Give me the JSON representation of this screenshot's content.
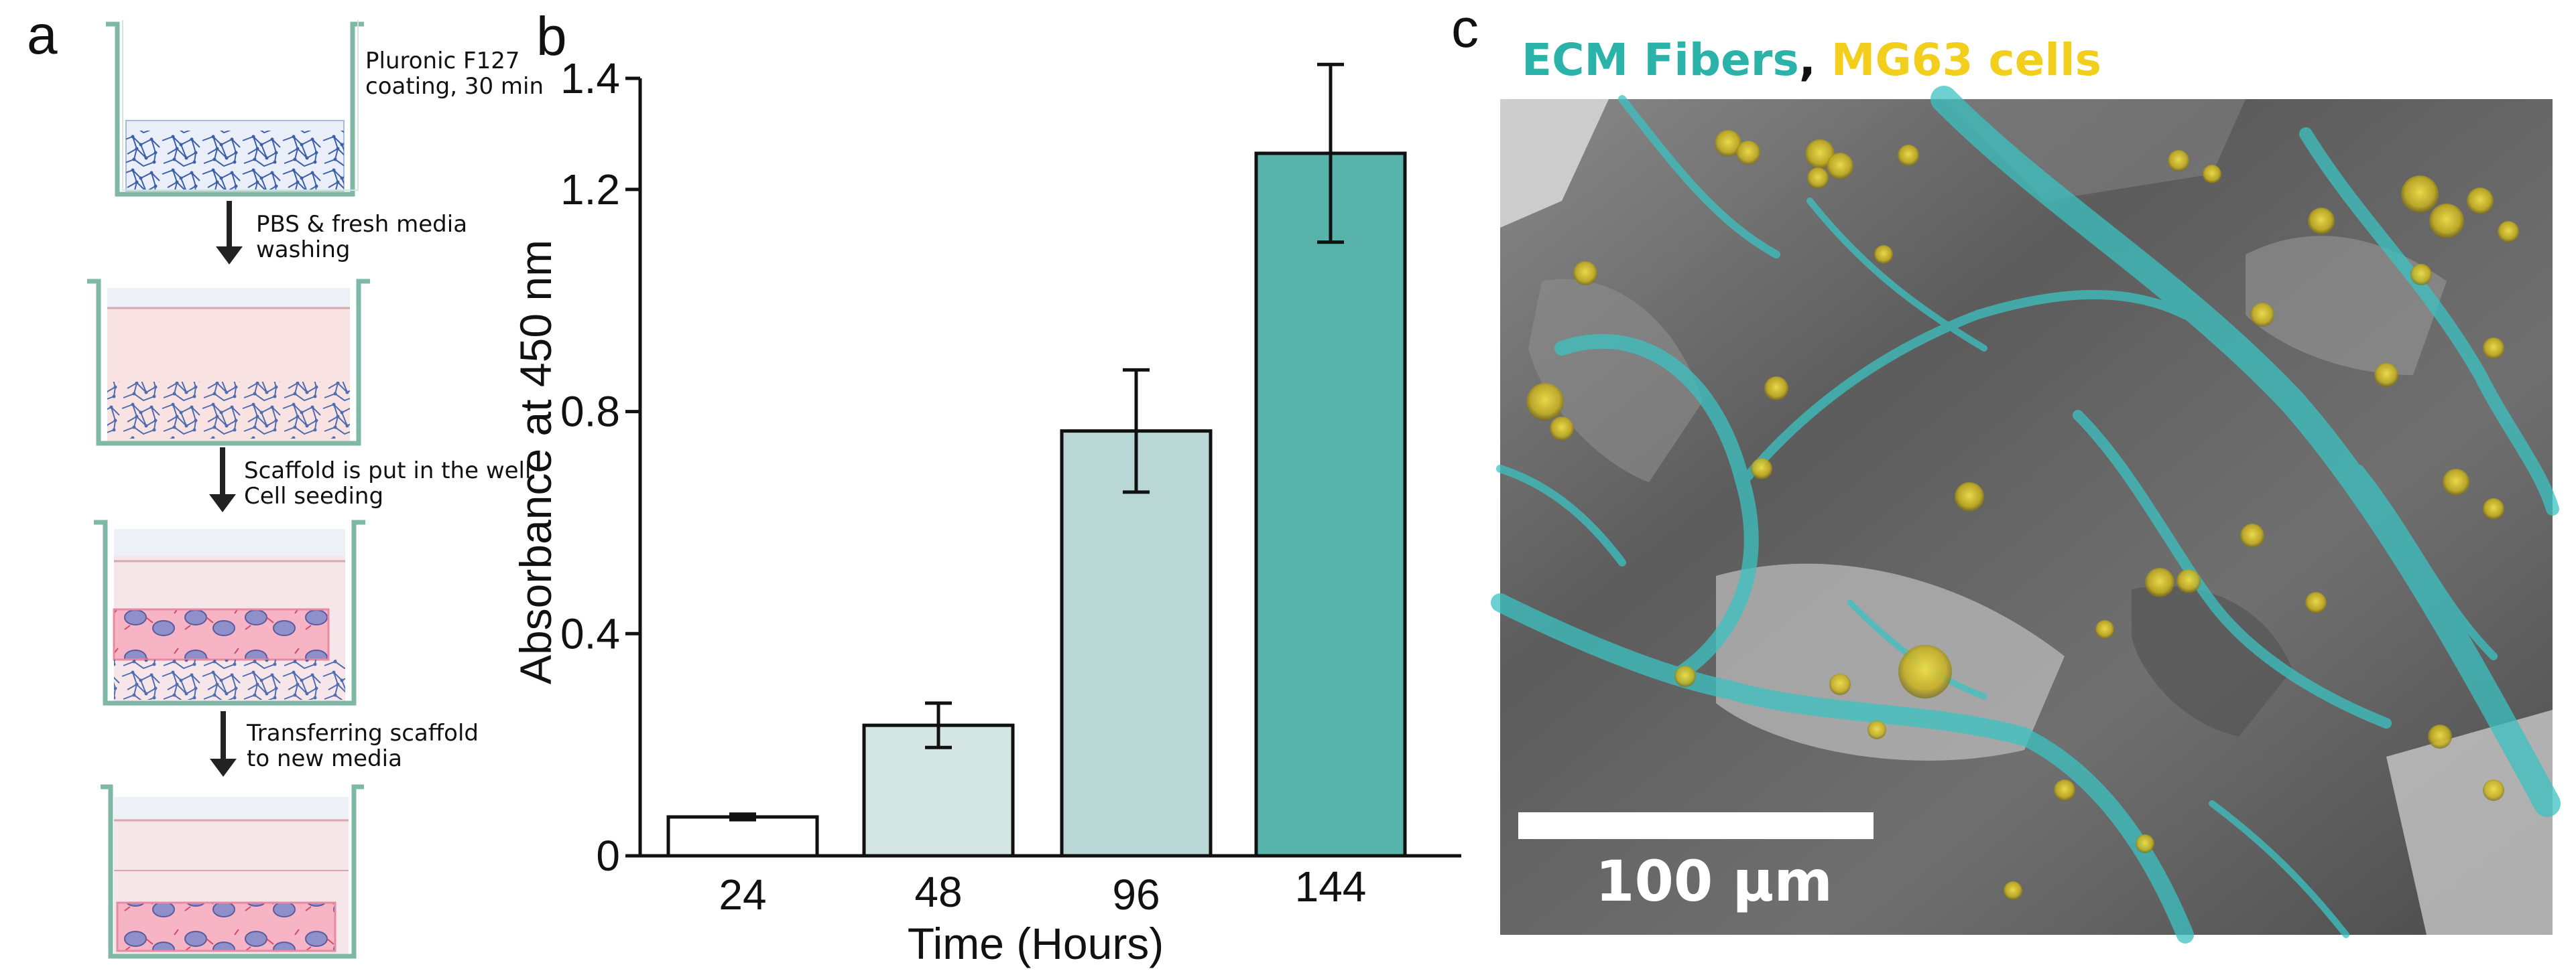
{
  "panels": {
    "a": {
      "letter": "a",
      "steps": [
        {
          "lines": [
            "Pluronic F127",
            "coating, 30 min"
          ]
        },
        {
          "lines": [
            "PBS & fresh media",
            "washing"
          ]
        },
        {
          "lines": [
            "Scaffold is put in the well",
            "Cell seeding"
          ]
        },
        {
          "lines": [
            "Transferring scaffold",
            "to new media"
          ]
        }
      ]
    },
    "b": {
      "letter": "b"
    },
    "c": {
      "letter": "c",
      "legend": [
        {
          "text": "ECM Fibers",
          "color": "#2bb3a9"
        },
        {
          "text": ", ",
          "color": "#111111"
        },
        {
          "text": "MG63 cells",
          "color": "#f2cf1d"
        }
      ],
      "scale_bar_label": "100 µm"
    }
  },
  "chart_data": {
    "type": "bar",
    "categories": [
      "24",
      "48",
      "96",
      "144"
    ],
    "values": [
      0.07,
      0.235,
      0.765,
      1.265
    ],
    "errors": [
      0.005,
      0.04,
      0.11,
      0.16
    ],
    "bar_colors": [
      "#ffffff",
      "#d4e6e2",
      "#b9d8d5",
      "#58b3ab"
    ],
    "xlabel": "Time (Hours)",
    "ylabel": "Absorbance at 450 nm",
    "ylim": [
      0,
      1.4
    ],
    "yticks": [
      0,
      0.4,
      0.8,
      1.2,
      1.4
    ],
    "ytick_labels": [
      "0",
      "0.4",
      "0.8",
      "1.2",
      "1.4"
    ],
    "grid": false
  }
}
